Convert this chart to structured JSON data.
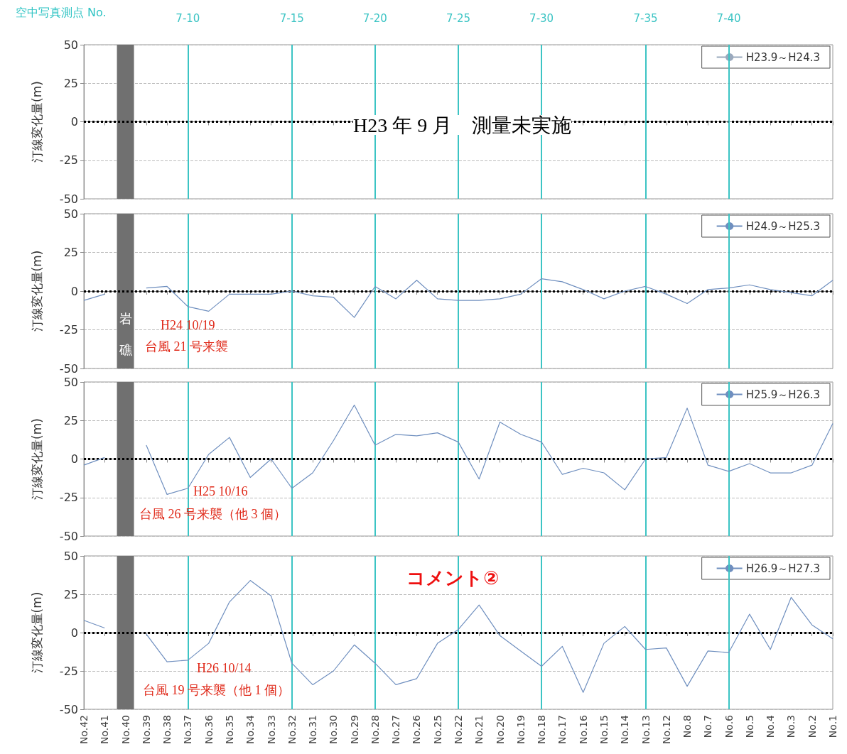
{
  "chart_data": [
    {
      "type": "line",
      "categories": [
        "No.42",
        "No.41",
        "No.40",
        "No.39",
        "No.38",
        "No.37",
        "No.36",
        "No.35",
        "No.34",
        "No.33",
        "No.32",
        "No.31",
        "No.30",
        "No.29",
        "No.28",
        "No.27",
        "No.26",
        "No.25",
        "No.22",
        "No.21",
        "No.20",
        "No.19",
        "No.18",
        "No.17",
        "No.16",
        "No.15",
        "No.14",
        "No.13",
        "No.12",
        "No.8",
        "No.7",
        "No.6",
        "No.5",
        "No.4",
        "No.3",
        "No.2",
        "No.1"
      ],
      "series": [
        {
          "name": "H23.9～H24.3",
          "color": "#9aa9bd",
          "values": [
            null,
            null,
            null,
            null,
            null,
            null,
            null,
            null,
            null,
            null,
            null,
            null,
            null,
            null,
            null,
            null,
            null,
            null,
            null,
            null,
            null,
            null,
            null,
            null,
            null,
            null,
            null,
            null,
            null,
            null,
            null,
            null,
            null,
            null,
            null,
            null,
            null
          ]
        }
      ],
      "ylabel": "汀線変化量(m)",
      "ylim": [
        -50,
        50
      ],
      "yticks": [
        -50,
        -25,
        0,
        25,
        50
      ],
      "grid": "y",
      "legend": "top right",
      "marker": "none",
      "tick_labels": "y",
      "ref_lines": [
        {
          "axis": "y",
          "value": 0,
          "color": "#000000",
          "line_style": "dotted"
        },
        {
          "axis": "x",
          "value": "No.37",
          "color": "#3cc4c4",
          "label": "7-10"
        },
        {
          "axis": "x",
          "value": "No.32",
          "color": "#3cc4c4",
          "label": "7-15"
        },
        {
          "axis": "x",
          "value": "No.28",
          "color": "#3cc4c4",
          "label": "7-20"
        },
        {
          "axis": "x",
          "value": "No.22",
          "color": "#3cc4c4",
          "label": "7-25"
        },
        {
          "axis": "x",
          "value": "No.18",
          "color": "#3cc4c4",
          "label": "7-30"
        },
        {
          "axis": "x",
          "value": "No.13",
          "color": "#3cc4c4",
          "label": "7-35"
        },
        {
          "axis": "x",
          "value": "No.6",
          "color": "#3cc4c4",
          "label": "7-40"
        }
      ],
      "bands": [
        {
          "axis": "x",
          "from": "No.40",
          "to": "No.40",
          "color": "#707070"
        }
      ],
      "annotations": [
        "H23 年 9 月　測量未実施",
        "空中写真測点 No."
      ]
    },
    {
      "type": "line",
      "categories": [
        "No.42",
        "No.41",
        "No.40",
        "No.39",
        "No.38",
        "No.37",
        "No.36",
        "No.35",
        "No.34",
        "No.33",
        "No.32",
        "No.31",
        "No.30",
        "No.29",
        "No.28",
        "No.27",
        "No.26",
        "No.25",
        "No.22",
        "No.21",
        "No.20",
        "No.19",
        "No.18",
        "No.17",
        "No.16",
        "No.15",
        "No.14",
        "No.13",
        "No.12",
        "No.8",
        "No.7",
        "No.6",
        "No.5",
        "No.4",
        "No.3",
        "No.2",
        "No.1"
      ],
      "series": [
        {
          "name": "H24.9～H25.3",
          "color": "#6f8fbf",
          "values": [
            -6,
            -2,
            null,
            2,
            3,
            -10,
            -13,
            -2,
            -2,
            -2,
            0,
            -3,
            -4,
            -17,
            3,
            -5,
            7,
            -5,
            -6,
            -6,
            -5,
            -2,
            8,
            6,
            1,
            -5,
            0,
            3,
            -2,
            -8,
            1,
            2,
            4,
            1,
            -1,
            -3,
            7
          ]
        }
      ],
      "ylabel": "汀線変化量(m)",
      "ylim": [
        -50,
        50
      ],
      "yticks": [
        -50,
        -25,
        0,
        25,
        50
      ],
      "grid": "y",
      "legend": "top right",
      "marker": "none",
      "tick_labels": "y",
      "ref_lines": [
        {
          "axis": "y",
          "value": 0,
          "color": "#000000",
          "line_style": "dotted"
        },
        {
          "axis": "x",
          "value": "No.37",
          "color": "#3cc4c4"
        },
        {
          "axis": "x",
          "value": "No.32",
          "color": "#3cc4c4"
        },
        {
          "axis": "x",
          "value": "No.28",
          "color": "#3cc4c4"
        },
        {
          "axis": "x",
          "value": "No.22",
          "color": "#3cc4c4"
        },
        {
          "axis": "x",
          "value": "No.18",
          "color": "#3cc4c4"
        },
        {
          "axis": "x",
          "value": "No.13",
          "color": "#3cc4c4"
        },
        {
          "axis": "x",
          "value": "No.6",
          "color": "#3cc4c4"
        }
      ],
      "bands": [
        {
          "axis": "x",
          "from": "No.40",
          "to": "No.40",
          "color": "#707070",
          "label": "岩礁"
        }
      ],
      "annotations": [
        "H24 10/19",
        "台風 21 号来襲"
      ]
    },
    {
      "type": "line",
      "categories": [
        "No.42",
        "No.41",
        "No.40",
        "No.39",
        "No.38",
        "No.37",
        "No.36",
        "No.35",
        "No.34",
        "No.33",
        "No.32",
        "No.31",
        "No.30",
        "No.29",
        "No.28",
        "No.27",
        "No.26",
        "No.25",
        "No.22",
        "No.21",
        "No.20",
        "No.19",
        "No.18",
        "No.17",
        "No.16",
        "No.15",
        "No.14",
        "No.13",
        "No.12",
        "No.8",
        "No.7",
        "No.6",
        "No.5",
        "No.4",
        "No.3",
        "No.2",
        "No.1"
      ],
      "series": [
        {
          "name": "H25.9～H26.3",
          "color": "#6f8fbf",
          "values": [
            -4,
            1,
            null,
            9,
            -23,
            -19,
            3,
            14,
            -12,
            0,
            -19,
            -9,
            12,
            35,
            9,
            16,
            15,
            17,
            11,
            -13,
            24,
            16,
            11,
            -10,
            -6,
            -9,
            -20,
            0,
            1,
            33,
            -4,
            -8,
            -3,
            -9,
            -9,
            -4,
            23
          ]
        }
      ],
      "ylabel": "汀線変化量(m)",
      "ylim": [
        -50,
        50
      ],
      "yticks": [
        -50,
        -25,
        0,
        25,
        50
      ],
      "grid": "y",
      "legend": "top right",
      "marker": "none",
      "tick_labels": "y",
      "ref_lines": [
        {
          "axis": "y",
          "value": 0,
          "color": "#000000",
          "line_style": "dotted"
        },
        {
          "axis": "x",
          "value": "No.37",
          "color": "#3cc4c4"
        },
        {
          "axis": "x",
          "value": "No.32",
          "color": "#3cc4c4"
        },
        {
          "axis": "x",
          "value": "No.28",
          "color": "#3cc4c4"
        },
        {
          "axis": "x",
          "value": "No.22",
          "color": "#3cc4c4"
        },
        {
          "axis": "x",
          "value": "No.18",
          "color": "#3cc4c4"
        },
        {
          "axis": "x",
          "value": "No.13",
          "color": "#3cc4c4"
        },
        {
          "axis": "x",
          "value": "No.6",
          "color": "#3cc4c4"
        }
      ],
      "bands": [
        {
          "axis": "x",
          "from": "No.40",
          "to": "No.40",
          "color": "#707070"
        }
      ],
      "annotations": [
        "H25 10/16",
        "台風 26 号来襲（他 3 個）"
      ]
    },
    {
      "type": "line",
      "categories": [
        "No.42",
        "No.41",
        "No.40",
        "No.39",
        "No.38",
        "No.37",
        "No.36",
        "No.35",
        "No.34",
        "No.33",
        "No.32",
        "No.31",
        "No.30",
        "No.29",
        "No.28",
        "No.27",
        "No.26",
        "No.25",
        "No.22",
        "No.21",
        "No.20",
        "No.19",
        "No.18",
        "No.17",
        "No.16",
        "No.15",
        "No.14",
        "No.13",
        "No.12",
        "No.8",
        "No.7",
        "No.6",
        "No.5",
        "No.4",
        "No.3",
        "No.2",
        "No.1"
      ],
      "series": [
        {
          "name": "H26.9～H27.3",
          "color": "#6f8fbf",
          "values": [
            8,
            3,
            null,
            -1,
            -19,
            -18,
            -7,
            20,
            34,
            24,
            -20,
            -34,
            -25,
            -8,
            -20,
            -34,
            -30,
            -7,
            2,
            18,
            -2,
            -12,
            -22,
            -9,
            -39,
            -7,
            4,
            -11,
            -10,
            -35,
            -12,
            -13,
            12,
            -11,
            23,
            5,
            -4
          ]
        }
      ],
      "ylabel": "汀線変化量(m)",
      "ylim": [
        -50,
        50
      ],
      "yticks": [
        -50,
        -25,
        0,
        25,
        50
      ],
      "grid": "y",
      "legend": "top right",
      "marker": "none",
      "ref_lines": [
        {
          "axis": "y",
          "value": 0,
          "color": "#000000",
          "line_style": "dotted"
        },
        {
          "axis": "x",
          "value": "No.37",
          "color": "#3cc4c4"
        },
        {
          "axis": "x",
          "value": "No.32",
          "color": "#3cc4c4"
        },
        {
          "axis": "x",
          "value": "No.28",
          "color": "#3cc4c4"
        },
        {
          "axis": "x",
          "value": "No.22",
          "color": "#3cc4c4"
        },
        {
          "axis": "x",
          "value": "No.18",
          "color": "#3cc4c4"
        },
        {
          "axis": "x",
          "value": "No.13",
          "color": "#3cc4c4"
        },
        {
          "axis": "x",
          "value": "No.6",
          "color": "#3cc4c4"
        }
      ],
      "bands": [
        {
          "axis": "x",
          "from": "No.40",
          "to": "No.40",
          "color": "#707070"
        }
      ],
      "annotations": [
        "H26 10/14",
        "台風 19 号来襲（他 1 個）",
        "コメント②"
      ]
    }
  ]
}
